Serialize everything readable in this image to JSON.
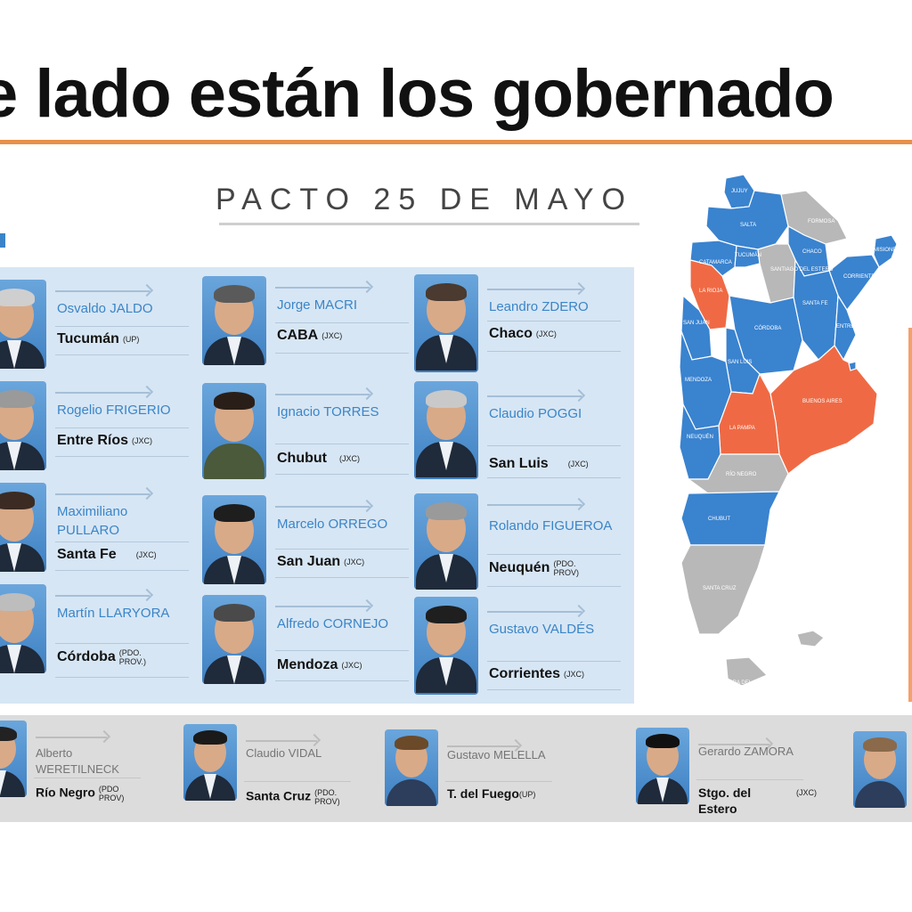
{
  "headline": "e lado están los gobernado",
  "section_title": "PACTO 25 DE MAYO",
  "colors": {
    "accent_orange": "#e7904a",
    "name_blue": "#3a85c8",
    "map_blue": "#3a83cf",
    "map_red": "#ef6a44",
    "map_gray": "#b8b8b8",
    "panel_bg": "#d7e6f4"
  },
  "signers": [
    {
      "name": "Osvaldo JALDO",
      "province": "Tucumán",
      "party": "(UP)"
    },
    {
      "name": "Rogelio FRIGERIO",
      "province": "Entre Ríos",
      "party": "(JXC)"
    },
    {
      "name": "Maximiliano PULLARO",
      "province": "Santa Fe",
      "party": "(JXC)"
    },
    {
      "name": "Martín LLARYORA",
      "province": "Córdoba",
      "party": "(PDO. PROV.)"
    },
    {
      "name": "Jorge MACRI",
      "province": "CABA",
      "party": "(JXC)"
    },
    {
      "name": "Ignacio TORRES",
      "province": "Chubut",
      "party": "(JXC)"
    },
    {
      "name": "Marcelo ORREGO",
      "province": "San Juan",
      "party": "(JXC)"
    },
    {
      "name": "Alfredo CORNEJO",
      "province": "Mendoza",
      "party": "(JXC)"
    },
    {
      "name": "Leandro ZDERO",
      "province": "Chaco",
      "party": "(JXC)"
    },
    {
      "name": "Claudio POGGI",
      "province": "San Luis",
      "party": "(JXC)"
    },
    {
      "name": "Rolando FIGUEROA",
      "province": "Neuquén",
      "party": "(PDO. PROV)"
    },
    {
      "name": "Gustavo VALDÉS",
      "province": "Corrientes",
      "party": "(JXC)"
    }
  ],
  "others": [
    {
      "name": "Alberto WERETILNECK",
      "province": "Río Negro",
      "party": "(PDO PROV)"
    },
    {
      "name": "Claudio VIDAL",
      "province": "Santa Cruz",
      "party": "(PDO. PROV)"
    },
    {
      "name": "Gustavo MELELLA",
      "province": "T. del Fuego",
      "party": "(UP)"
    },
    {
      "name": "Gerardo ZAMORA",
      "province": "Stgo. del Estero",
      "party": "(JXC)"
    }
  ],
  "map": {
    "labels": {
      "jujuy": "JUJUY",
      "salta": "SALTA",
      "formosa": "FORMOSA",
      "tucuman": "TUCUMÁN",
      "catamarca": "CATAMARCA",
      "santiago": "SANTIAGO DEL ESTERO",
      "chaco": "CHACO",
      "misiones": "MISIONES",
      "corrientes": "CORRIENTES",
      "la_rioja": "LA RIOJA",
      "santa_fe": "SANTA FE",
      "entre_rios": "ENTRE RÍOS",
      "san_juan": "SAN JUAN",
      "cordoba": "CÓRDOBA",
      "san_luis": "SAN LUIS",
      "mendoza": "MENDOZA",
      "buenos_aires": "BUENOS AIRES",
      "la_pampa": "LA PAMPA",
      "neuquen": "NEUQUÉN",
      "rio_negro": "RÍO NEGRO",
      "chubut": "CHUBUT",
      "santa_cruz": "SANTA CRUZ",
      "tierra_del_fuego": "TIERRA DEL FUEGO"
    }
  }
}
